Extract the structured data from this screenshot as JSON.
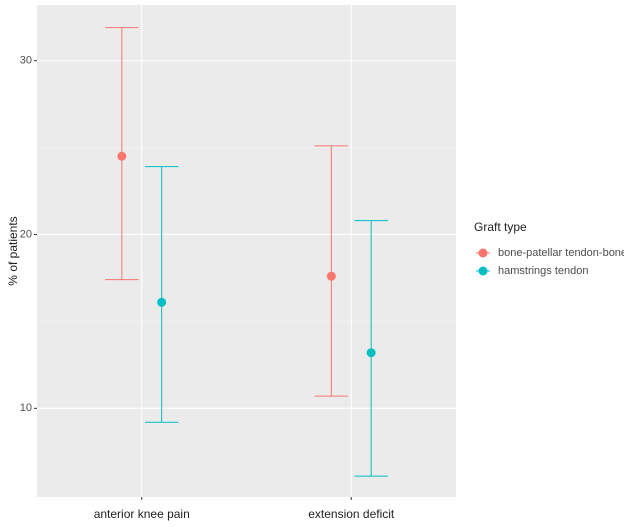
{
  "chart_data": {
    "type": "errorbar",
    "y_label": "% of patients",
    "legend_title": "Graft type",
    "categories": [
      "anterior knee pain",
      "extension deficit"
    ],
    "series": [
      {
        "name": "bone-patellar tendon-bone",
        "color": "#F8766D",
        "values": [
          24.5,
          17.6
        ],
        "lower": [
          17.4,
          10.7
        ],
        "upper": [
          31.9,
          25.1
        ]
      },
      {
        "name": "hamstrings tendon",
        "color": "#00BFC4",
        "values": [
          16.1,
          13.2
        ],
        "lower": [
          9.2,
          6.1
        ],
        "upper": [
          23.9,
          20.8
        ]
      }
    ],
    "ylim": [
      4.9,
      33.2
    ],
    "yticks": [
      10,
      20,
      30
    ],
    "y_minor_ticks": [
      15,
      25
    ],
    "grid": true,
    "legend": "right"
  }
}
